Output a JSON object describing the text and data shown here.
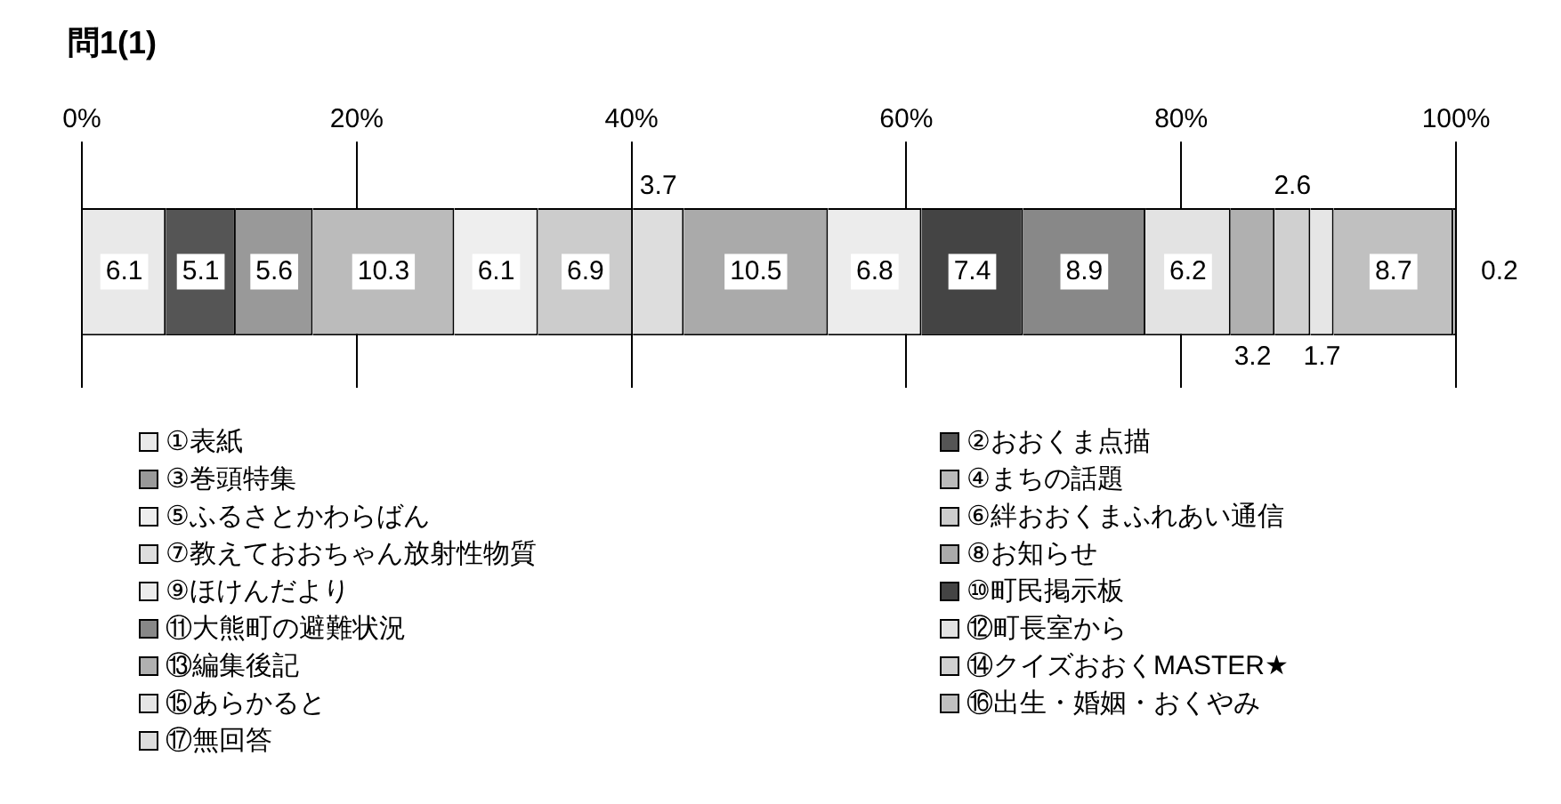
{
  "chart_data": {
    "type": "bar",
    "title": "問1(1)",
    "orientation": "horizontal",
    "stacked": true,
    "categories": [
      null
    ],
    "xlim": [
      0,
      100
    ],
    "xticks": [
      {
        "value": 0,
        "label": "0%"
      },
      {
        "value": 20,
        "label": "20%"
      },
      {
        "value": 40,
        "label": "40%"
      },
      {
        "value": 60,
        "label": "60%"
      },
      {
        "value": 80,
        "label": "80%"
      },
      {
        "value": 100,
        "label": "100%"
      }
    ],
    "grid": "x",
    "legend": "bottom",
    "data_labels": true,
    "series": [
      {
        "name": "①表紙",
        "color": "#e9e9e9",
        "values": [
          6.1
        ]
      },
      {
        "name": "②おおくま点描",
        "color": "#555555",
        "values": [
          5.1
        ]
      },
      {
        "name": "③巻頭特集",
        "color": "#999999",
        "values": [
          5.6
        ]
      },
      {
        "name": "④まちの話題",
        "color": "#bbbbbb",
        "values": [
          10.3
        ]
      },
      {
        "name": "⑤ふるさとかわらばん",
        "color": "#eeeeee",
        "values": [
          6.1
        ]
      },
      {
        "name": "⑥絆おおくまふれあい通信",
        "color": "#cccccc",
        "values": [
          6.9
        ]
      },
      {
        "name": "⑦教えておおちゃん放射性物質",
        "color": "#dddddd",
        "values": [
          3.7
        ]
      },
      {
        "name": "⑧お知らせ",
        "color": "#aaaaaa",
        "values": [
          10.5
        ]
      },
      {
        "name": "⑨ほけんだより",
        "color": "#ececec",
        "values": [
          6.8
        ]
      },
      {
        "name": "⑩町民掲示板",
        "color": "#444444",
        "values": [
          7.4
        ]
      },
      {
        "name": "⑪大熊町の避難状況",
        "color": "#888888",
        "values": [
          8.9
        ]
      },
      {
        "name": "⑫町長室から",
        "color": "#e3e3e3",
        "values": [
          6.2
        ]
      },
      {
        "name": "⑬編集後記",
        "color": "#b0b0b0",
        "values": [
          3.2
        ]
      },
      {
        "name": "⑭クイズおおくMASTER★",
        "color": "#d0d0d0",
        "values": [
          2.6
        ]
      },
      {
        "name": "⑮あらかると",
        "color": "#e6e6e6",
        "values": [
          1.7
        ]
      },
      {
        "name": "⑯出生・婚姻・おくやみ",
        "color": "#c0c0c0",
        "values": [
          8.7
        ]
      },
      {
        "name": "⑰無回答",
        "color": "#dcdcdc",
        "values": [
          0.2
        ]
      }
    ]
  }
}
